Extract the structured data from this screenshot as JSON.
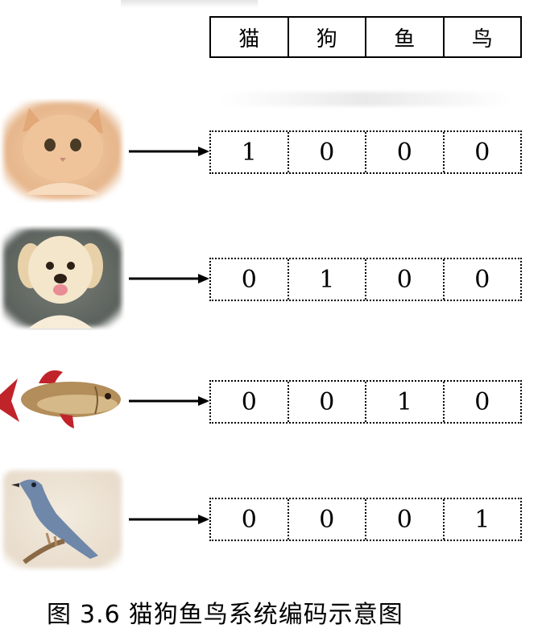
{
  "header": {
    "columns": [
      "猫",
      "狗",
      "鱼",
      "鸟"
    ]
  },
  "rows": [
    {
      "animal": "cat",
      "icon": "cat-image",
      "codes": [
        "1",
        "0",
        "0",
        "0"
      ]
    },
    {
      "animal": "dog",
      "icon": "dog-image",
      "codes": [
        "0",
        "1",
        "0",
        "0"
      ]
    },
    {
      "animal": "fish",
      "icon": "fish-image",
      "codes": [
        "0",
        "0",
        "1",
        "0"
      ]
    },
    {
      "animal": "bird",
      "icon": "bird-image",
      "codes": [
        "0",
        "0",
        "0",
        "1"
      ]
    }
  ],
  "caption": {
    "label": "图",
    "number": "3.6",
    "text": "猫狗鱼鸟系统编码示意图"
  },
  "colors": {
    "line": "#000000",
    "fish_fin": "#c0242a",
    "bird_body": "#6f87a8",
    "cat_fur": "#e9b98a",
    "dog_fur": "#f2e3c6"
  }
}
